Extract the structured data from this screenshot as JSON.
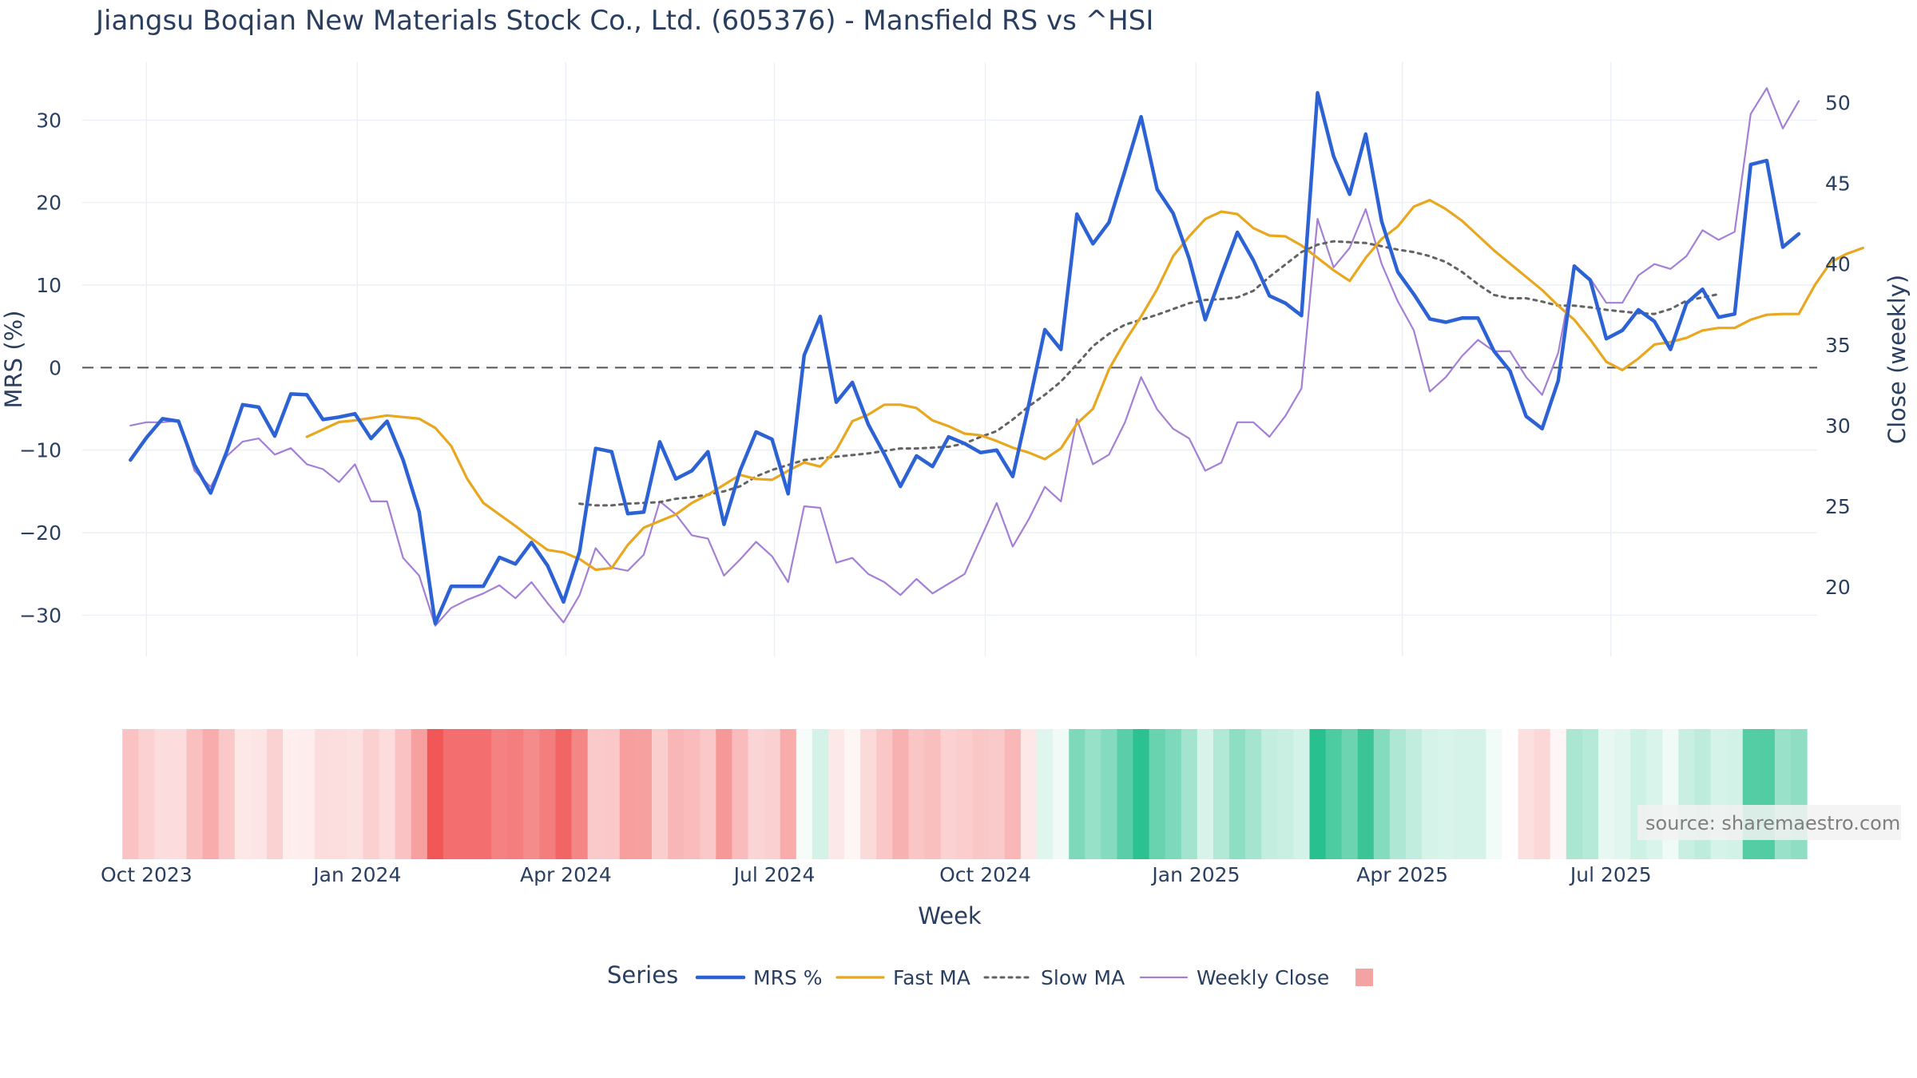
{
  "chart_data": {
    "type": "line",
    "title": "Jiangsu Boqian New Materials Stock Co., Ltd. (605376) - Mansfield RS vs ^HSI",
    "xlabel": "Week",
    "ylabel": "MRS (%)",
    "y2label": "Close (weekly)",
    "ylim": [
      -35,
      37
    ],
    "y2lim": [
      15.7,
      52.5
    ],
    "yticks": [
      30,
      20,
      10,
      0,
      -10,
      -20,
      -30
    ],
    "y2ticks": [
      50,
      45,
      40,
      35,
      30,
      25,
      20
    ],
    "ytick_labels": [
      "30",
      "20",
      "10",
      "0",
      "−10",
      "−20",
      "−30"
    ],
    "xticks": [
      {
        "date": "2023-10-01",
        "label": "Oct 2023"
      },
      {
        "date": "2024-01-01",
        "label": "Jan 2024"
      },
      {
        "date": "2024-04-01",
        "label": "Apr 2024"
      },
      {
        "date": "2024-07-01",
        "label": "Jul 2024"
      },
      {
        "date": "2024-10-01",
        "label": "Oct 2024"
      },
      {
        "date": "2025-01-01",
        "label": "Jan 2025"
      },
      {
        "date": "2025-04-01",
        "label": "Apr 2025"
      },
      {
        "date": "2025-07-01",
        "label": "Jul 2025"
      }
    ],
    "zero_line": 0,
    "grid": true,
    "legend": {
      "title": "Series",
      "position": "bottom"
    },
    "series": [
      {
        "name": "MRS %",
        "color": "#2c62d4",
        "axis": "left",
        "x_start": "2023-09-24",
        "x_end": "2025-09-21",
        "values": [
          -11.2,
          -8.5,
          -6.2,
          -6.5,
          -11.8,
          -15.2,
          -10.2,
          -4.5,
          -4.8,
          -8.3,
          -3.2,
          -3.3,
          -6.3,
          -6.0,
          -5.6,
          -8.6,
          -6.5,
          -11.2,
          -17.5,
          -31.0,
          -26.5,
          -26.5,
          -26.5,
          -23.0,
          -23.8,
          -21.2,
          -24.0,
          -28.4,
          -22.3,
          -9.8,
          -10.2,
          -17.7,
          -17.5,
          -9.0,
          -13.5,
          -12.5,
          -10.2,
          -19.0,
          -12.5,
          -7.8,
          -8.7,
          -15.3,
          1.5,
          6.2,
          -4.2,
          -1.8,
          -6.9,
          -10.5,
          -14.4,
          -10.7,
          -12.0,
          -8.4,
          -9.2,
          -10.3,
          -10.0,
          -13.2,
          -4.5,
          4.6,
          2.2,
          18.6,
          15.0,
          17.6,
          23.9,
          30.4,
          21.6,
          18.7,
          13.2,
          5.8,
          11.2,
          16.4,
          13.0,
          8.7,
          7.8,
          6.3,
          33.3,
          25.6,
          21.0,
          28.3,
          17.7,
          11.6,
          8.9,
          5.9,
          5.5,
          6.0,
          6.0,
          2.0,
          -0.4,
          -5.9,
          -7.4,
          -1.6,
          12.3,
          10.6,
          3.5,
          4.5,
          7.0,
          5.6,
          2.2,
          7.8,
          9.5,
          6.1,
          6.5,
          24.6,
          25.1,
          14.6,
          16.2
        ]
      },
      {
        "name": "Fast MA",
        "color": "#e8a71e",
        "axis": "left",
        "x_start": "2023-12-10",
        "x_end": "2025-09-21",
        "values": [
          -8.4,
          -7.5,
          -6.6,
          -6.4,
          -6.1,
          -5.8,
          -6.0,
          -6.2,
          -7.3,
          -9.5,
          -13.5,
          -16.4,
          -17.8,
          -19.2,
          -20.7,
          -22.1,
          -22.4,
          -23.2,
          -24.5,
          -24.3,
          -21.5,
          -19.4,
          -18.6,
          -17.8,
          -16.4,
          -15.4,
          -14.2,
          -13.0,
          -13.5,
          -13.6,
          -12.5,
          -11.5,
          -12.0,
          -10.0,
          -6.5,
          -5.7,
          -4.5,
          -4.5,
          -4.9,
          -6.4,
          -7.1,
          -8.0,
          -8.2,
          -8.9,
          -9.7,
          -10.3,
          -11.1,
          -9.8,
          -6.8,
          -5.0,
          -0.2,
          3.2,
          6.2,
          9.5,
          13.5,
          15.9,
          18.0,
          18.9,
          18.6,
          16.9,
          16.0,
          15.9,
          14.8,
          13.3,
          11.8,
          10.5,
          13.3,
          15.6,
          17.1,
          19.5,
          20.3,
          19.2,
          17.8,
          16.0,
          14.2,
          12.6,
          11.0,
          9.4,
          7.5,
          5.8,
          3.4,
          0.7,
          -0.3,
          1.1,
          2.8,
          3.1,
          3.6,
          4.5,
          4.8,
          4.8,
          5.8,
          6.4,
          6.5,
          6.5,
          10.0,
          12.8,
          13.8,
          14.5
        ]
      },
      {
        "name": "Slow MA",
        "color": "#636363",
        "axis": "left",
        "dash": true,
        "x_start": "2024-04-07",
        "x_end": "2025-09-21",
        "values": [
          -16.5,
          -16.7,
          -16.7,
          -16.5,
          -16.4,
          -16.3,
          -15.9,
          -15.7,
          -15.4,
          -15.0,
          -14.4,
          -13.2,
          -12.4,
          -11.8,
          -11.2,
          -11.0,
          -10.8,
          -10.6,
          -10.4,
          -10.1,
          -9.8,
          -9.8,
          -9.7,
          -9.6,
          -9.2,
          -8.4,
          -7.7,
          -6.3,
          -4.7,
          -3.3,
          -1.7,
          0.4,
          2.6,
          4.1,
          5.2,
          5.8,
          6.4,
          7.1,
          7.8,
          8.2,
          8.3,
          8.5,
          9.3,
          11.0,
          12.5,
          14.0,
          14.9,
          15.3,
          15.2,
          15.1,
          14.7,
          14.3,
          14.0,
          13.5,
          12.8,
          11.6,
          10.1,
          8.8,
          8.4,
          8.4,
          8.0,
          7.5,
          7.5,
          7.3,
          7.0,
          6.8,
          6.6,
          6.5,
          7.1,
          8.1,
          8.5,
          8.9
        ]
      },
      {
        "name": "Weekly Close",
        "color": "#a37fd6",
        "axis": "right",
        "x_start": "2023-09-24",
        "x_end": "2025-09-21",
        "values": [
          30.0,
          30.2,
          30.2,
          30.3,
          27.2,
          26.2,
          28.1,
          29.0,
          29.2,
          28.2,
          28.6,
          27.6,
          27.3,
          26.5,
          27.6,
          25.3,
          25.3,
          21.8,
          20.7,
          17.6,
          18.7,
          19.2,
          19.6,
          20.1,
          19.3,
          20.3,
          19.0,
          17.8,
          19.5,
          22.4,
          21.2,
          21.0,
          22.0,
          25.3,
          24.5,
          23.2,
          23.0,
          20.7,
          21.7,
          22.8,
          21.9,
          20.3,
          25.0,
          24.9,
          21.5,
          21.8,
          20.8,
          20.3,
          19.5,
          20.5,
          19.6,
          20.2,
          20.8,
          23.0,
          25.2,
          22.5,
          24.2,
          26.2,
          25.3,
          30.4,
          27.6,
          28.2,
          30.2,
          33.0,
          31.0,
          29.8,
          29.2,
          27.2,
          27.7,
          30.2,
          30.2,
          29.3,
          30.6,
          32.3,
          42.8,
          39.8,
          41.0,
          43.4,
          40.0,
          37.7,
          35.9,
          32.1,
          33.0,
          34.3,
          35.3,
          34.6,
          34.6,
          33.0,
          31.9,
          34.5,
          39.8,
          39.1,
          37.6,
          37.6,
          39.3,
          40.0,
          39.7,
          40.5,
          42.1,
          41.5,
          42.0,
          49.3,
          50.9,
          48.4,
          50.1
        ]
      }
    ],
    "heatmap_strip": {
      "description_values_are_mrs_percent": true,
      "colorscale": {
        "negative": "#ef4444",
        "neutral": "#ffffff",
        "positive": "#10b981"
      },
      "range": [
        -31,
        31
      ]
    }
  },
  "legend_items": [
    {
      "label": "MRS %"
    },
    {
      "label": "Fast MA"
    },
    {
      "label": "Slow MA"
    },
    {
      "label": "Weekly Close"
    }
  ],
  "source_text": "source: sharemaestro.com"
}
